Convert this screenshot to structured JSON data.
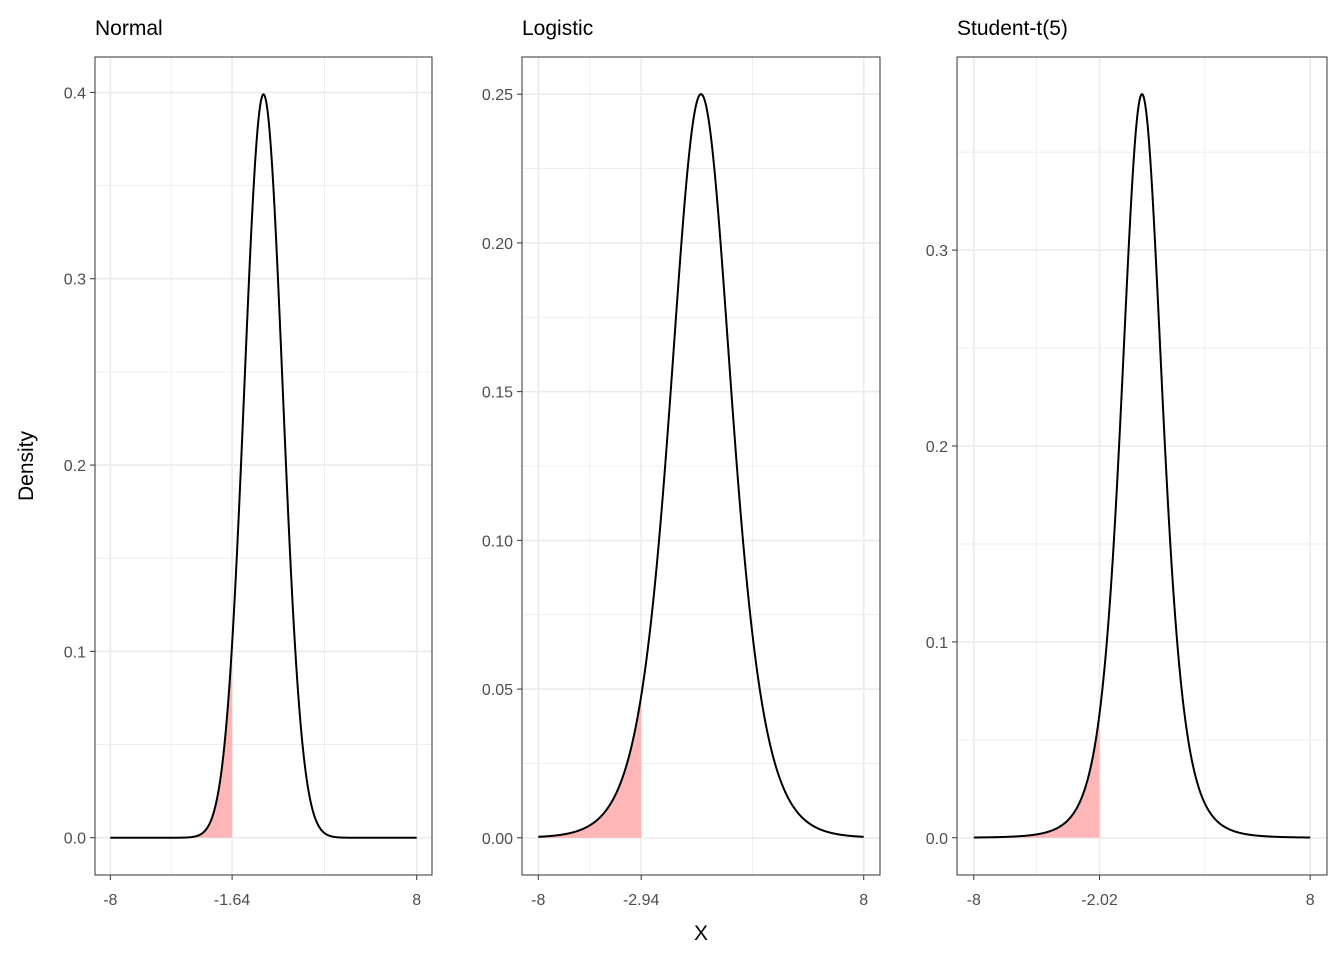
{
  "chart_data": {
    "type": "area",
    "ylabel": "Density",
    "xlabel": "X",
    "colors": {
      "curve": "#000000",
      "fill": "#FFB6B6",
      "grid": "#EBEBEB",
      "border": "#333333",
      "tick_text": "#4D4D4D"
    },
    "panels": [
      {
        "title": "Normal",
        "distribution": "normal",
        "critical_value": -1.64,
        "xlim": [
          -8,
          8
        ],
        "ylim": [
          -0.02,
          0.419
        ],
        "x_ticks": [
          -8,
          -1.64,
          8
        ],
        "x_tick_labels": [
          "-8",
          "-1.64",
          "8"
        ],
        "y_ticks": [
          0,
          0.1,
          0.2,
          0.3,
          0.4
        ],
        "y_tick_labels": [
          "0.0",
          "0.1",
          "0.2",
          "0.3",
          "0.4"
        ],
        "peak_density": 0.399
      },
      {
        "title": "Logistic",
        "distribution": "logistic",
        "critical_value": -2.94,
        "xlim": [
          -8,
          8
        ],
        "ylim": [
          -0.0125,
          0.2625
        ],
        "x_ticks": [
          -8,
          -2.94,
          8
        ],
        "x_tick_labels": [
          "-8",
          "-2.94",
          "8"
        ],
        "y_ticks": [
          0,
          0.05,
          0.1,
          0.15,
          0.2,
          0.25
        ],
        "y_tick_labels": [
          "0.00",
          "0.05",
          "0.10",
          "0.15",
          "0.20",
          "0.25"
        ],
        "peak_density": 0.25
      },
      {
        "title": "Student-t(5)",
        "distribution": "student-t",
        "df": 5,
        "critical_value": -2.02,
        "xlim": [
          -8,
          8
        ],
        "ylim": [
          -0.019,
          0.3986
        ],
        "x_ticks": [
          -8,
          -2.02,
          8
        ],
        "x_tick_labels": [
          "-8",
          "-2.02",
          "8"
        ],
        "y_ticks": [
          0,
          0.1,
          0.2,
          0.3
        ],
        "y_tick_labels": [
          "0.0",
          "0.1",
          "0.2",
          "0.3"
        ],
        "peak_density": 0.3796
      }
    ]
  }
}
